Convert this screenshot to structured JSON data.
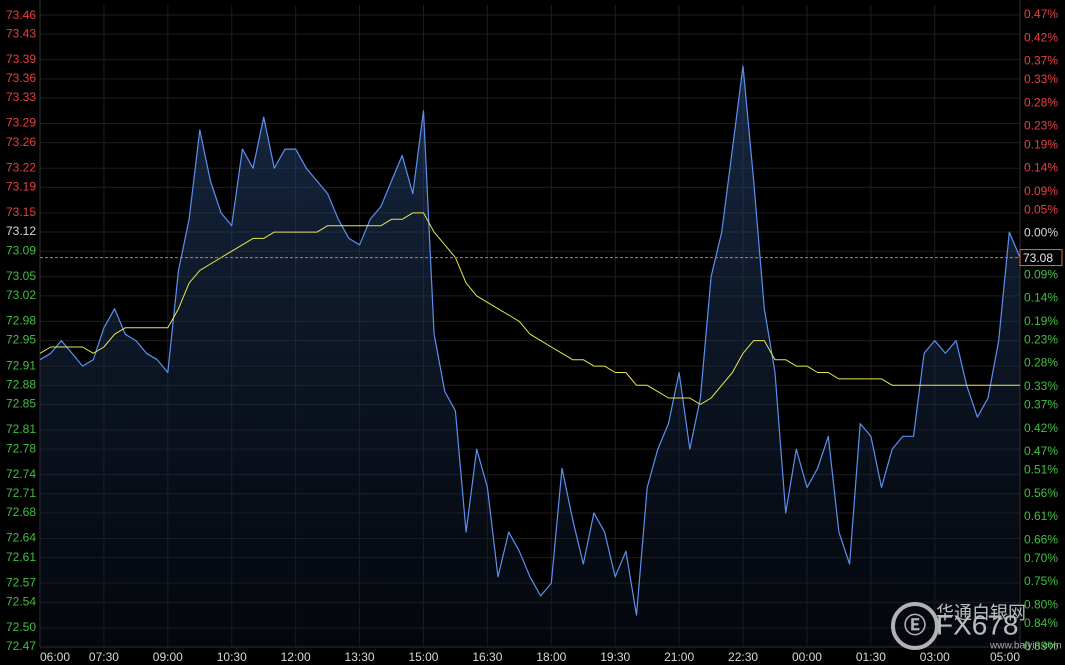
{
  "chart_data": {
    "type": "line",
    "x": [
      "06:00",
      "06:15",
      "06:30",
      "06:45",
      "07:00",
      "07:15",
      "07:30",
      "07:45",
      "08:00",
      "08:15",
      "08:30",
      "08:45",
      "09:00",
      "09:15",
      "09:30",
      "09:45",
      "10:00",
      "10:15",
      "10:30",
      "10:45",
      "11:00",
      "11:15",
      "11:30",
      "11:45",
      "12:00",
      "12:15",
      "12:30",
      "12:45",
      "13:00",
      "13:15",
      "13:30",
      "13:45",
      "14:00",
      "14:15",
      "14:30",
      "14:45",
      "15:00",
      "15:15",
      "15:30",
      "15:45",
      "16:00",
      "16:15",
      "16:30",
      "16:45",
      "17:00",
      "17:15",
      "17:30",
      "17:45",
      "18:00",
      "18:15",
      "18:30",
      "18:45",
      "19:00",
      "19:15",
      "19:30",
      "19:45",
      "20:00",
      "20:15",
      "20:30",
      "20:45",
      "21:00",
      "21:15",
      "21:30",
      "21:45",
      "22:00",
      "22:15",
      "22:30",
      "22:45",
      "23:00",
      "23:15",
      "23:30",
      "23:45",
      "00:00",
      "00:15",
      "00:30",
      "00:45",
      "01:00",
      "01:15",
      "01:30",
      "01:45",
      "02:00",
      "02:15",
      "02:30",
      "02:45",
      "03:00",
      "03:15",
      "03:30",
      "03:45",
      "04:00",
      "04:15",
      "04:30",
      "04:45",
      "05:00"
    ],
    "series": [
      {
        "name": "price",
        "color": "#5b8ff0",
        "fill": true,
        "values": [
          72.92,
          72.93,
          72.95,
          72.93,
          72.91,
          72.92,
          72.97,
          73.0,
          72.96,
          72.95,
          72.93,
          72.92,
          72.9,
          73.06,
          73.14,
          73.28,
          73.2,
          73.15,
          73.13,
          73.25,
          73.22,
          73.3,
          73.22,
          73.25,
          73.25,
          73.22,
          73.2,
          73.18,
          73.14,
          73.11,
          73.1,
          73.14,
          73.16,
          73.2,
          73.24,
          73.18,
          73.31,
          72.96,
          72.87,
          72.84,
          72.65,
          72.78,
          72.72,
          72.58,
          72.65,
          72.62,
          72.58,
          72.55,
          72.57,
          72.75,
          72.67,
          72.6,
          72.68,
          72.65,
          72.58,
          72.62,
          72.52,
          72.72,
          72.78,
          72.82,
          72.9,
          72.78,
          72.86,
          73.05,
          73.12,
          73.25,
          73.38,
          73.2,
          73.0,
          72.9,
          72.68,
          72.78,
          72.72,
          72.75,
          72.8,
          72.65,
          72.6,
          72.82,
          72.8,
          72.72,
          72.78,
          72.8,
          72.8,
          72.93,
          72.95,
          72.93,
          72.95,
          72.88,
          72.83,
          72.86,
          72.95,
          73.12,
          73.08
        ]
      },
      {
        "name": "average",
        "color": "#e6e64a",
        "fill": false,
        "values": [
          72.93,
          72.94,
          72.94,
          72.94,
          72.94,
          72.93,
          72.94,
          72.96,
          72.97,
          72.97,
          72.97,
          72.97,
          72.97,
          73.0,
          73.04,
          73.06,
          73.07,
          73.08,
          73.09,
          73.1,
          73.11,
          73.11,
          73.12,
          73.12,
          73.12,
          73.12,
          73.12,
          73.13,
          73.13,
          73.13,
          73.13,
          73.13,
          73.13,
          73.14,
          73.14,
          73.15,
          73.15,
          73.12,
          73.1,
          73.08,
          73.04,
          73.02,
          73.01,
          73.0,
          72.99,
          72.98,
          72.96,
          72.95,
          72.94,
          72.93,
          72.92,
          72.92,
          72.91,
          72.91,
          72.9,
          72.9,
          72.88,
          72.88,
          72.87,
          72.86,
          72.86,
          72.86,
          72.85,
          72.86,
          72.88,
          72.9,
          72.93,
          72.95,
          72.95,
          72.92,
          72.92,
          72.91,
          72.91,
          72.9,
          72.9,
          72.89,
          72.89,
          72.89,
          72.89,
          72.89,
          72.88,
          72.88,
          72.88,
          72.88,
          72.88,
          72.88,
          72.88,
          72.88,
          72.88,
          72.88,
          72.88,
          72.88,
          72.88
        ]
      }
    ],
    "xlim": [
      "06:00",
      "05:00"
    ],
    "xticks": [
      "06:00",
      "07:30",
      "09:00",
      "10:30",
      "12:00",
      "13:30",
      "15:00",
      "16:30",
      "18:00",
      "19:30",
      "21:00",
      "22:30",
      "00:00",
      "01:30",
      "03:00",
      "05:00"
    ],
    "ylim": [
      72.47,
      73.46
    ],
    "yticks": [
      73.46,
      73.43,
      73.39,
      73.36,
      73.33,
      73.29,
      73.26,
      73.22,
      73.19,
      73.15,
      73.12,
      73.09,
      73.05,
      73.02,
      72.98,
      72.95,
      72.91,
      72.88,
      72.85,
      72.81,
      72.78,
      72.74,
      72.71,
      72.68,
      72.64,
      72.61,
      72.57,
      72.54,
      {
        "value": 72.5,
        "label": "72.50"
      },
      72.47
    ],
    "y2lim": [
      -0.89,
      0.47
    ],
    "y2ticks": [
      {
        "value": 0.47,
        "label": "0.47%"
      },
      {
        "value": 0.42,
        "label": "0.42%"
      },
      {
        "value": 0.37,
        "label": "0.37%"
      },
      {
        "value": 0.33,
        "label": "0.33%"
      },
      {
        "value": 0.28,
        "label": "0.28%"
      },
      {
        "value": 0.23,
        "label": "0.23%"
      },
      {
        "value": 0.19,
        "label": "0.19%"
      },
      {
        "value": 0.14,
        "label": "0.14%"
      },
      {
        "value": 0.09,
        "label": "0.09%"
      },
      {
        "value": 0.05,
        "label": "0.05%"
      },
      {
        "value": 0,
        "label": "0.00%"
      },
      {
        "value": -0.05,
        "label": "0.05%"
      },
      {
        "value": -0.09,
        "label": "0.09%"
      },
      {
        "value": -0.14,
        "label": "0.14%"
      },
      {
        "value": -0.19,
        "label": "0.19%"
      },
      {
        "value": -0.23,
        "label": "0.23%"
      },
      {
        "value": -0.28,
        "label": "0.28%"
      },
      {
        "value": -0.33,
        "label": "0.33%"
      },
      {
        "value": -0.37,
        "label": "0.37%"
      },
      {
        "value": -0.42,
        "label": "0.42%"
      },
      {
        "value": -0.47,
        "label": "0.47%"
      },
      {
        "value": -0.51,
        "label": "0.51%"
      },
      {
        "value": -0.56,
        "label": "0.56%"
      },
      {
        "value": -0.61,
        "label": "0.61%"
      },
      {
        "value": -0.66,
        "label": "0.66%"
      },
      {
        "value": -0.7,
        "label": "0.70%"
      },
      {
        "value": -0.75,
        "label": "0.75%"
      },
      {
        "value": -0.8,
        "label": "0.80%"
      },
      {
        "value": -0.84,
        "label": "0.84%"
      },
      {
        "value": -0.89,
        "label": "0.89%"
      }
    ],
    "last_price": 73.08,
    "grid": true,
    "up_color": "#e84040",
    "down_color": "#3fc03f",
    "watermark": {
      "brand": "FX678",
      "name": "华通白银网",
      "url": "www.baiyin.com"
    }
  }
}
